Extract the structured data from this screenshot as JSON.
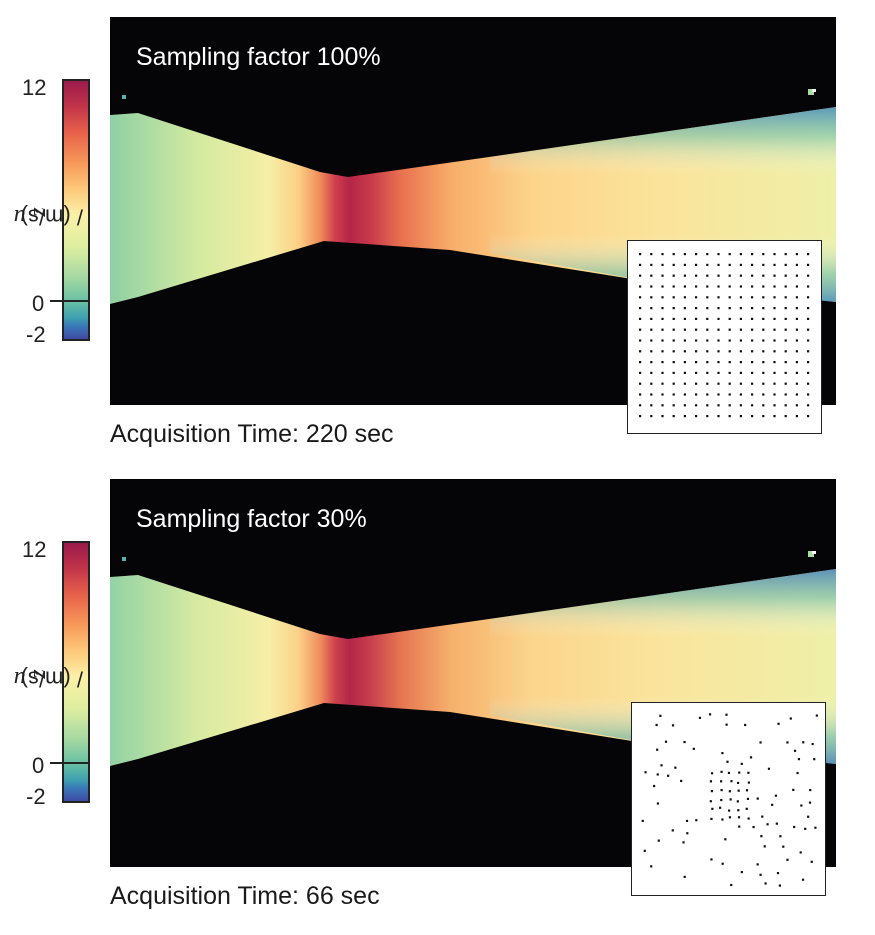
{
  "chart_data": [
    {
      "type": "heatmap",
      "title": "Sampling factor 100%",
      "caption": "Acquisition Time: 220 sec",
      "colorbar": {
        "label_variable": "u",
        "label_subscript": "z",
        "label_unit": " / (m/s)",
        "ticks": [
          "12",
          "0",
          "-2"
        ],
        "range": [
          -2,
          12
        ]
      },
      "sampling_pattern": "uniform grid"
    },
    {
      "type": "heatmap",
      "title": "Sampling factor 30%",
      "caption": "Acquisition Time: 66 sec",
      "colorbar": {
        "label_variable": "u",
        "label_subscript": "z",
        "label_unit": " / (m/s)",
        "ticks": [
          "12",
          "0",
          "-2"
        ],
        "range": [
          -2,
          12
        ]
      },
      "sampling_pattern": "variable density random"
    }
  ],
  "colors": {
    "background": "#050507",
    "colormap": [
      "#3f4aa3",
      "#3a78b8",
      "#3e9fb0",
      "#64bfa4",
      "#a5d9a2",
      "#dfeea0",
      "#fbf1a8",
      "#fdc97a",
      "#f79a5a",
      "#e7614a",
      "#c23549",
      "#9b1a4c"
    ]
  }
}
